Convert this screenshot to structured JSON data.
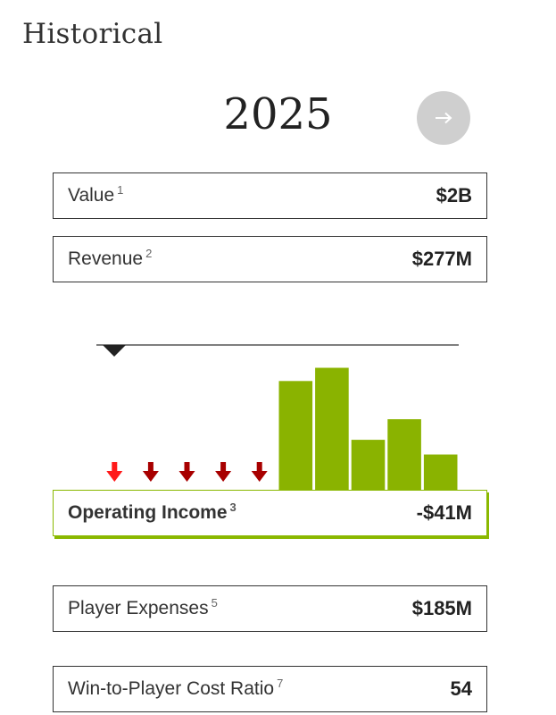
{
  "header": {
    "title": "Historical"
  },
  "year_nav": {
    "year": "2025",
    "next_icon": "arrow-right-icon"
  },
  "stats": {
    "value": {
      "label": "Value",
      "note": "1",
      "amount": "$2B"
    },
    "revenue": {
      "label": "Revenue",
      "note": "2",
      "amount": "$277M"
    },
    "operating_income": {
      "label": "Operating Income",
      "note": "3",
      "amount": "-$41M"
    },
    "player_expenses": {
      "label": "Player Expenses",
      "note": "5",
      "amount": "$185M"
    },
    "win_ratio": {
      "label": "Win-to-Player Cost Ratio",
      "note": "7",
      "amount": "54"
    }
  },
  "colors": {
    "positive": "#8ab300",
    "negative_current": "#ff1a1a",
    "negative": "#a80000",
    "accent_border": "#8ab800"
  },
  "chart_data": {
    "type": "bar",
    "series": [
      {
        "values": [
          -1,
          -1,
          -1,
          -1,
          -1,
          7.4,
          8.3,
          3.4,
          4.8,
          2.4
        ]
      }
    ],
    "selected_index": 0,
    "ylim": [
      -1,
      9
    ],
    "grid": false,
    "legend": "none"
  }
}
